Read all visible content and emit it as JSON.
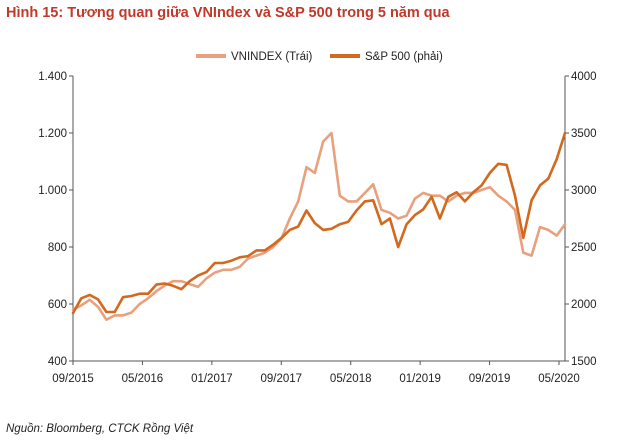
{
  "figure": {
    "title": "Hình 15: Tương quan giữa VNIndex và S&P 500 trong 5 năm qua",
    "source": "Nguồn: Bloomberg, CTCK Rồng Việt"
  },
  "chart_data": {
    "type": "line",
    "title": "Hình 15: Tương quan giữa VNIndex và S&P 500 trong 5 năm qua",
    "x_tick_labels": [
      "09/2015",
      "05/2016",
      "01/2017",
      "09/2017",
      "05/2018",
      "01/2019",
      "09/2019",
      "05/2020"
    ],
    "x_range": [
      "2015-09",
      "2020-08"
    ],
    "left_axis": {
      "ylim": [
        400,
        1400
      ],
      "tick_labels": [
        "400",
        "600",
        "800",
        "1.000",
        "1.200",
        "1.400"
      ],
      "tick_values": [
        400,
        600,
        800,
        1000,
        1200,
        1400
      ]
    },
    "right_axis": {
      "ylim": [
        1500,
        4000
      ],
      "tick_labels": [
        "1500",
        "2000",
        "2500",
        "3000",
        "3500",
        "4000"
      ],
      "tick_values": [
        1500,
        2000,
        2500,
        3000,
        3500,
        4000
      ]
    },
    "legend_position": "top-center",
    "series": [
      {
        "name": "VNINDEX (Trái)",
        "axis": "left",
        "color": "#e8a07e",
        "x": [
          "2015-09",
          "2015-10",
          "2015-11",
          "2015-12",
          "2016-01",
          "2016-02",
          "2016-03",
          "2016-04",
          "2016-05",
          "2016-06",
          "2016-07",
          "2016-08",
          "2016-09",
          "2016-10",
          "2016-11",
          "2016-12",
          "2017-01",
          "2017-02",
          "2017-03",
          "2017-04",
          "2017-05",
          "2017-06",
          "2017-07",
          "2017-08",
          "2017-09",
          "2017-10",
          "2017-11",
          "2017-12",
          "2018-01",
          "2018-02",
          "2018-03",
          "2018-04",
          "2018-05",
          "2018-06",
          "2018-07",
          "2018-08",
          "2018-09",
          "2018-10",
          "2018-11",
          "2018-12",
          "2019-01",
          "2019-02",
          "2019-03",
          "2019-04",
          "2019-05",
          "2019-06",
          "2019-07",
          "2019-08",
          "2019-09",
          "2019-10",
          "2019-11",
          "2019-12",
          "2020-01",
          "2020-02",
          "2020-03",
          "2020-04",
          "2020-05",
          "2020-06",
          "2020-07",
          "2020-08"
        ],
        "values": [
          580,
          595,
          615,
          590,
          545,
          560,
          560,
          570,
          600,
          620,
          645,
          665,
          680,
          680,
          670,
          660,
          690,
          710,
          720,
          720,
          730,
          760,
          770,
          780,
          800,
          830,
          900,
          960,
          1080,
          1060,
          1170,
          1200,
          980,
          960,
          960,
          990,
          1020,
          930,
          920,
          900,
          910,
          970,
          990,
          980,
          980,
          960,
          980,
          990,
          990,
          1000,
          1010,
          980,
          960,
          930,
          780,
          770,
          870,
          860,
          840,
          880
        ]
      },
      {
        "name": "S&P 500 (phải)",
        "axis": "right",
        "color": "#d2691e",
        "x": [
          "2015-09",
          "2015-10",
          "2015-11",
          "2015-12",
          "2016-01",
          "2016-02",
          "2016-03",
          "2016-04",
          "2016-05",
          "2016-06",
          "2016-07",
          "2016-08",
          "2016-09",
          "2016-10",
          "2016-11",
          "2016-12",
          "2017-01",
          "2017-02",
          "2017-03",
          "2017-04",
          "2017-05",
          "2017-06",
          "2017-07",
          "2017-08",
          "2017-09",
          "2017-10",
          "2017-11",
          "2017-12",
          "2018-01",
          "2018-02",
          "2018-03",
          "2018-04",
          "2018-05",
          "2018-06",
          "2018-07",
          "2018-08",
          "2018-09",
          "2018-10",
          "2018-11",
          "2018-12",
          "2019-01",
          "2019-02",
          "2019-03",
          "2019-04",
          "2019-05",
          "2019-06",
          "2019-07",
          "2019-08",
          "2019-09",
          "2019-10",
          "2019-11",
          "2019-12",
          "2020-01",
          "2020-02",
          "2020-03",
          "2020-04",
          "2020-05",
          "2020-06",
          "2020-07",
          "2020-08"
        ],
        "values": [
          1920,
          2050,
          2080,
          2040,
          1930,
          1930,
          2060,
          2070,
          2090,
          2090,
          2170,
          2180,
          2160,
          2130,
          2200,
          2250,
          2280,
          2360,
          2360,
          2380,
          2410,
          2420,
          2470,
          2470,
          2520,
          2580,
          2650,
          2680,
          2820,
          2710,
          2650,
          2660,
          2700,
          2720,
          2820,
          2900,
          2910,
          2700,
          2750,
          2500,
          2700,
          2780,
          2830,
          2940,
          2750,
          2940,
          2980,
          2900,
          2980,
          3040,
          3150,
          3230,
          3220,
          2950,
          2580,
          2910,
          3040,
          3100,
          3270,
          3500
        ]
      }
    ]
  }
}
